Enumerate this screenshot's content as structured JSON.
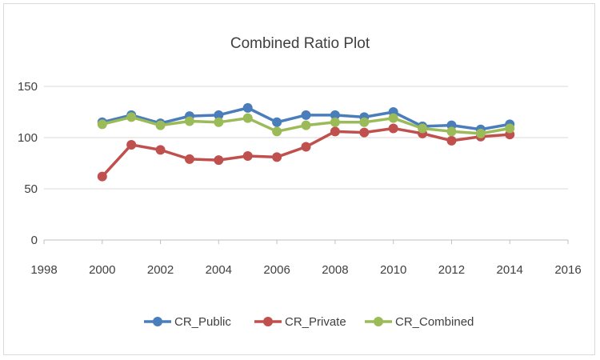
{
  "chart_data": {
    "type": "line",
    "title": "Combined Ratio Plot",
    "xlabel": "",
    "ylabel": "",
    "xlim": [
      1998,
      2016
    ],
    "ylim": [
      0,
      150
    ],
    "xticks": [
      1998,
      2000,
      2002,
      2004,
      2006,
      2008,
      2010,
      2012,
      2014,
      2016
    ],
    "yticks": [
      0,
      50,
      100,
      150
    ],
    "grid": "horizontal",
    "legend": "bottom",
    "x": [
      2000,
      2001,
      2002,
      2003,
      2004,
      2005,
      2006,
      2007,
      2008,
      2009,
      2010,
      2011,
      2012,
      2013,
      2014
    ],
    "series": [
      {
        "name": "CR_Public",
        "color": "#4a7ebb",
        "values": [
          115,
          122,
          114,
          121,
          122,
          129,
          115,
          122,
          122,
          120,
          125,
          111,
          112,
          108,
          113
        ]
      },
      {
        "name": "CR_Private",
        "color": "#c0504d",
        "values": [
          62,
          93,
          88,
          79,
          78,
          82,
          81,
          91,
          106,
          105,
          109,
          104,
          97,
          101,
          103
        ]
      },
      {
        "name": "CR_Combined",
        "color": "#9bbb59",
        "values": [
          113,
          120,
          112,
          116,
          115,
          119,
          106,
          112,
          115,
          115,
          119,
          109,
          106,
          104,
          109
        ]
      }
    ]
  }
}
